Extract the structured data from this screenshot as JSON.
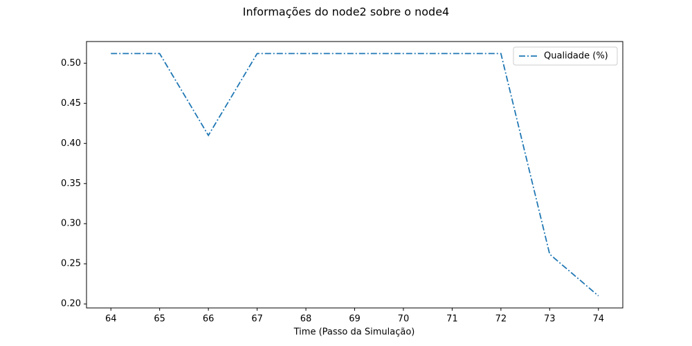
{
  "chart_data": {
    "type": "line",
    "title": "Informações do node2 sobre o node4",
    "x_label": "Time (Passo da Simulação)",
    "x": [
      64,
      65,
      66,
      67,
      68,
      69,
      70,
      71,
      72,
      73,
      74
    ],
    "series": [
      {
        "name": "Qualidade (%)",
        "color": "#1f77b4",
        "values": [
          0.512,
          0.512,
          0.41,
          0.512,
          0.512,
          0.512,
          0.512,
          0.512,
          0.512,
          0.262,
          0.21
        ]
      }
    ],
    "xlim": [
      63.5,
      74.5
    ],
    "xticks": [
      64,
      65,
      66,
      67,
      68,
      69,
      70,
      71,
      72,
      73,
      74
    ],
    "ylim": [
      0.195,
      0.527
    ],
    "yticks": [
      {
        "value": 0.2,
        "label": "0.20"
      },
      0.25,
      {
        "value": 0.3,
        "label": "0.30"
      },
      0.35,
      {
        "value": 0.4,
        "label": "0.40"
      },
      0.45,
      {
        "value": 0.5,
        "label": "0.50"
      }
    ],
    "line_style": "dashdot",
    "legend": "upper right"
  }
}
